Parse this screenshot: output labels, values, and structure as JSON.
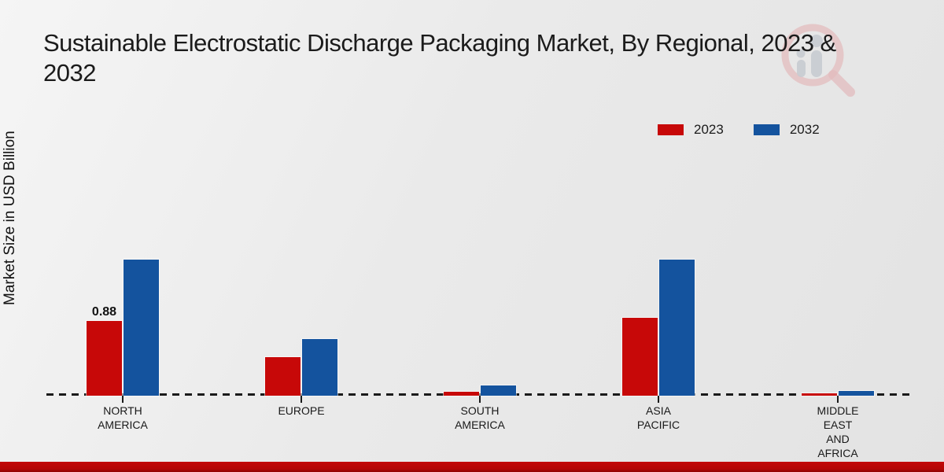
{
  "title": {
    "line1": "Sustainable Electrostatic Discharge Packaging Market, By Regional, 2023 &",
    "line2": "2032"
  },
  "y_axis_label": "Market Size in USD Billion",
  "legend": {
    "position": "top-right",
    "items": [
      {
        "label": "2023",
        "color": "#c70808"
      },
      {
        "label": "2032",
        "color": "#14539e"
      }
    ]
  },
  "chart_data": {
    "type": "bar",
    "title": "Sustainable Electrostatic Discharge Packaging Market, By Regional, 2023 & 2032",
    "xlabel": "",
    "ylabel": "Market Size in USD Billion",
    "categories": [
      "North America",
      "Europe",
      "South America",
      "Asia Pacific",
      "Middle East and Africa"
    ],
    "category_label_lines": [
      [
        "NORTH",
        "AMERICA"
      ],
      [
        "EUROPE"
      ],
      [
        "SOUTH",
        "AMERICA"
      ],
      [
        "ASIA",
        "PACIFIC"
      ],
      [
        "MIDDLE",
        "EAST",
        "AND",
        "AFRICA"
      ]
    ],
    "series": [
      {
        "name": "2023",
        "color": "#c70808",
        "values": [
          0.88,
          0.45,
          0.05,
          0.92,
          0.03
        ]
      },
      {
        "name": "2032",
        "color": "#14539e",
        "values": [
          1.6,
          0.67,
          0.12,
          1.6,
          0.06
        ]
      }
    ],
    "bar_labels": [
      {
        "category": "North America",
        "series": "2023",
        "text": "0.88"
      }
    ],
    "axis": {
      "baseline_style": "dashed",
      "gridlines": false,
      "y_tick_labels_visible": false,
      "ylim": [
        0,
        1.8
      ]
    },
    "legend_position": "top-right"
  },
  "footer": {
    "color": "#b40606"
  },
  "watermark": {
    "name": "market-research-magnifier-logo",
    "ring_color": "#e3bcbe",
    "glyph_color": "#c7cbd0"
  }
}
